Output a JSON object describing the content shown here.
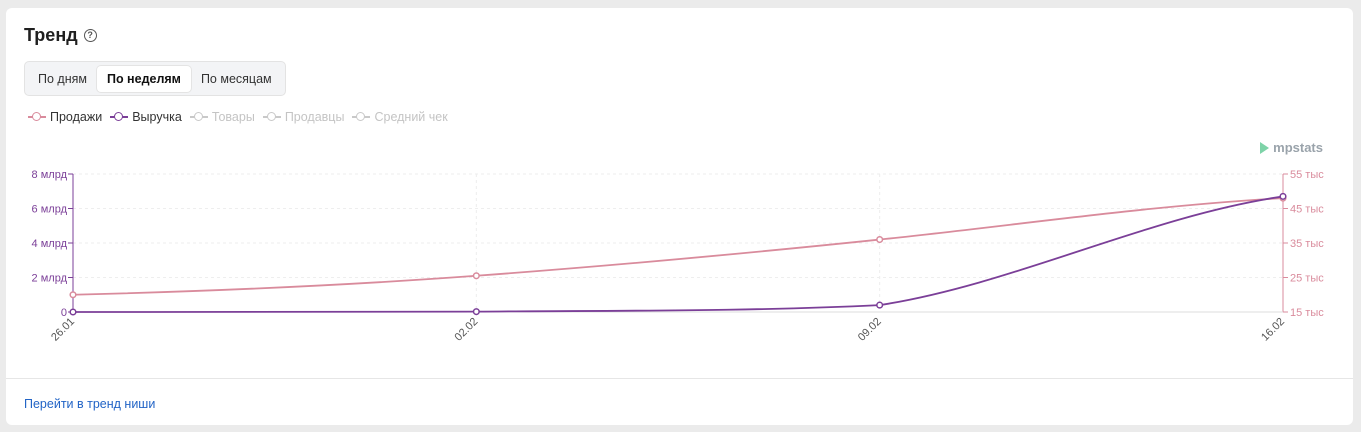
{
  "header": {
    "title": "Тренд",
    "help_icon": "question-circle-icon"
  },
  "tabs": [
    {
      "label": "По дням",
      "active": false
    },
    {
      "label": "По неделям",
      "active": true
    },
    {
      "label": "По месяцам",
      "active": false
    }
  ],
  "legend": [
    {
      "label": "Продажи",
      "color": "#d98b9c",
      "enabled": true
    },
    {
      "label": "Выручка",
      "color": "#7b3f98",
      "enabled": true
    },
    {
      "label": "Товары",
      "color": "#c9c9c9",
      "enabled": false
    },
    {
      "label": "Продавцы",
      "color": "#c9c9c9",
      "enabled": false
    },
    {
      "label": "Средний чек",
      "color": "#c9c9c9",
      "enabled": false
    }
  ],
  "logo": {
    "text": "mpstats",
    "icon": "mpstats-logo-icon"
  },
  "chart_data": {
    "type": "line",
    "title": "",
    "xlabel": "",
    "categories": [
      "26.01",
      "02.02",
      "09.02",
      "16.02"
    ],
    "y_left": {
      "series": "Выручка",
      "range": [
        0,
        8000000000
      ],
      "ticks": [
        0,
        2000000000,
        4000000000,
        6000000000,
        8000000000
      ],
      "tick_labels": [
        "0",
        "2 млрд",
        "4 млрд",
        "6 млрд",
        "8 млрд"
      ],
      "color": "#7b3f98"
    },
    "y_right": {
      "series": "Продажи",
      "range": [
        15000,
        55000
      ],
      "ticks": [
        15000,
        25000,
        35000,
        45000,
        55000
      ],
      "tick_labels": [
        "15 тыс",
        "25 тыс",
        "35 тыс",
        "45 тыс",
        "55 тыс"
      ],
      "color": "#d98b9c"
    },
    "series": [
      {
        "name": "Продажи",
        "axis": "right",
        "color": "#d98b9c",
        "values": [
          20000,
          25500,
          36000,
          48000
        ]
      },
      {
        "name": "Выручка",
        "axis": "left",
        "color": "#7b3f98",
        "values": [
          0,
          20000000,
          400000000,
          6700000000
        ]
      }
    ],
    "grid": true
  },
  "footer": {
    "link_label": "Перейти в тренд ниши"
  }
}
